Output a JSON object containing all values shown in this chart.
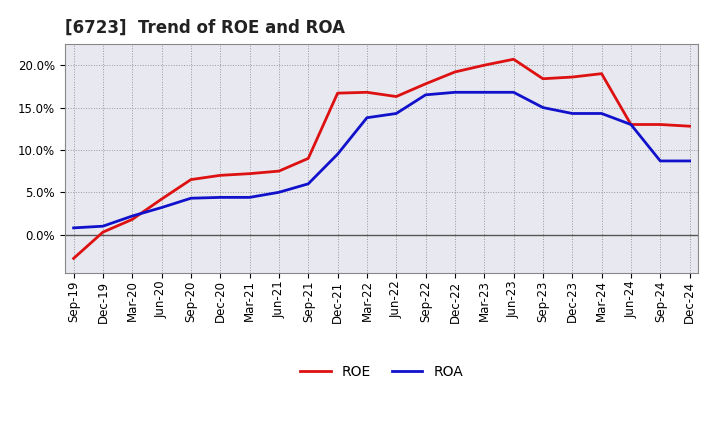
{
  "title": "[6723]  Trend of ROE and ROA",
  "x_labels": [
    "Sep-19",
    "Dec-19",
    "Mar-20",
    "Jun-20",
    "Sep-20",
    "Dec-20",
    "Mar-21",
    "Jun-21",
    "Sep-21",
    "Dec-21",
    "Mar-22",
    "Jun-22",
    "Sep-22",
    "Dec-22",
    "Mar-23",
    "Jun-23",
    "Sep-23",
    "Dec-23",
    "Mar-24",
    "Jun-24",
    "Sep-24",
    "Dec-24"
  ],
  "roe": [
    -2.8,
    0.3,
    1.8,
    4.2,
    6.5,
    7.0,
    7.2,
    7.5,
    9.0,
    16.7,
    16.8,
    16.3,
    17.8,
    19.2,
    20.0,
    20.7,
    18.4,
    18.6,
    19.0,
    13.0,
    13.0,
    12.8
  ],
  "roa": [
    0.8,
    1.0,
    2.2,
    3.2,
    4.3,
    4.4,
    4.4,
    5.0,
    6.0,
    9.5,
    13.8,
    14.3,
    16.5,
    16.8,
    16.8,
    16.8,
    15.0,
    14.3,
    14.3,
    13.0,
    8.7,
    8.7
  ],
  "roe_color": "#dd1111",
  "roa_color": "#1111cc",
  "bg_color": "#ffffff",
  "plot_bg_color": "#e8e8f0",
  "grid_color": "#999999",
  "ylim": [
    -4.5,
    22.5
  ],
  "yticks": [
    0.0,
    5.0,
    10.0,
    15.0,
    20.0
  ],
  "title_fontsize": 12,
  "legend_fontsize": 10,
  "tick_fontsize": 8.5
}
